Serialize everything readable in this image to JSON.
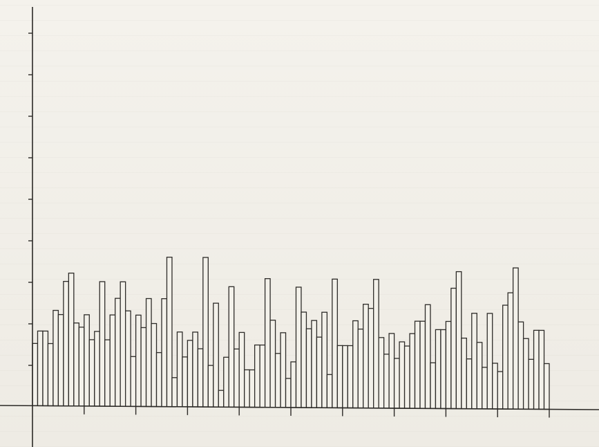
{
  "chart_data": {
    "type": "bar",
    "title": "",
    "xlabel": "",
    "ylabel": "",
    "ylim": [
      0,
      10
    ],
    "grid": false,
    "legend": "none",
    "y_ticks": [
      1,
      2,
      3,
      4,
      5,
      6,
      7,
      8,
      9,
      10
    ],
    "x_ticks": [
      10,
      20,
      30,
      40,
      50,
      60,
      70,
      80,
      90,
      100
    ],
    "x": [
      1,
      2,
      3,
      4,
      5,
      6,
      7,
      8,
      9,
      10,
      11,
      12,
      13,
      14,
      15,
      16,
      17,
      18,
      19,
      20,
      21,
      22,
      23,
      24,
      25,
      26,
      27,
      28,
      29,
      30,
      31,
      32,
      33,
      34,
      35,
      36,
      37,
      38,
      39,
      40,
      41,
      42,
      43,
      44,
      45,
      46,
      47,
      48,
      49,
      50,
      51,
      52,
      53,
      54,
      55,
      56,
      57,
      58,
      59,
      60,
      61,
      62,
      63,
      64,
      65,
      66,
      67,
      68,
      69,
      70,
      71,
      72,
      73,
      74,
      75,
      76,
      77,
      78,
      79,
      80,
      81,
      82,
      83,
      84,
      85,
      86,
      87,
      88,
      89,
      90,
      91,
      92,
      93,
      94,
      95,
      96,
      97,
      98,
      99,
      100
    ],
    "values": [
      1.5,
      1.8,
      1.8,
      1.5,
      2.3,
      2.2,
      3.0,
      3.2,
      2.0,
      1.9,
      2.2,
      1.6,
      1.8,
      3.0,
      1.6,
      2.2,
      2.6,
      3.0,
      2.3,
      1.2,
      2.2,
      1.9,
      2.6,
      2.0,
      1.3,
      2.6,
      3.6,
      0.7,
      1.8,
      1.2,
      1.6,
      1.8,
      1.4,
      3.6,
      1.0,
      2.5,
      0.4,
      1.2,
      2.9,
      1.4,
      1.8,
      0.9,
      0.9,
      1.5,
      1.5,
      3.1,
      2.1,
      1.3,
      1.8,
      0.7,
      1.1,
      2.9,
      2.3,
      1.9,
      2.1,
      1.7,
      2.3,
      0.8,
      3.1,
      1.5,
      1.5,
      1.5,
      2.1,
      1.9,
      2.5,
      2.4,
      3.1,
      1.7,
      1.3,
      1.8,
      1.2,
      1.6,
      1.5,
      1.8,
      2.1,
      2.1,
      2.5,
      1.1,
      1.9,
      1.9,
      2.1,
      2.9,
      3.3,
      1.7,
      1.2,
      2.3,
      1.6,
      1.0,
      2.3,
      1.1,
      0.9,
      2.5,
      2.8,
      3.4,
      2.1,
      1.7,
      1.2,
      1.9,
      1.9,
      1.1
    ],
    "color": "#f3f1ea"
  }
}
